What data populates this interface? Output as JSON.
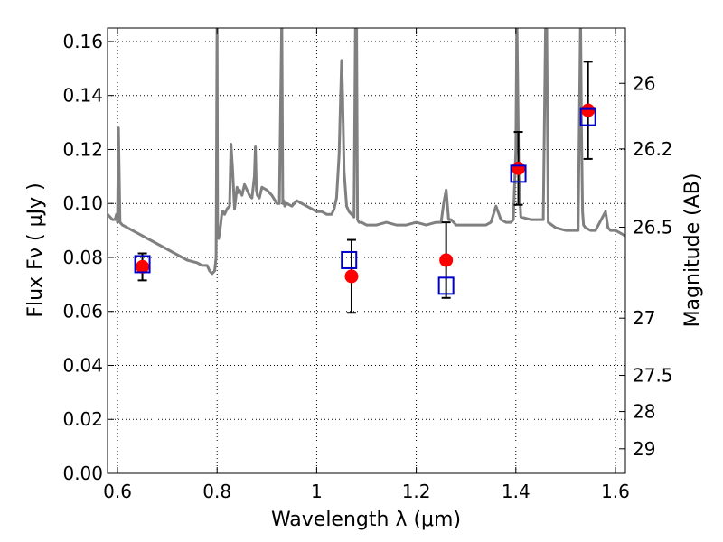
{
  "chart_data": {
    "type": "scatter",
    "xlabel": "Wavelength  λ (μm)",
    "ylabel": "Flux  Fν  ( μJy )",
    "ylabel_right": "Magnitude (AB)",
    "xlim": [
      0.58,
      1.62
    ],
    "ylim": [
      0.0,
      0.165
    ],
    "grid": true,
    "x_ticks": [
      0.6,
      0.8,
      1.0,
      1.2,
      1.4,
      1.6
    ],
    "x_tick_labels": [
      "0.6",
      "0.8",
      "1",
      "1.2",
      "1.4",
      "1.6"
    ],
    "y_ticks": [
      0.0,
      0.02,
      0.04,
      0.06,
      0.08,
      0.1,
      0.12,
      0.14,
      0.16
    ],
    "y_tick_labels": [
      "0.00",
      "0.02",
      "0.04",
      "0.06",
      "0.08",
      "0.10",
      "0.12",
      "0.14",
      "0.16"
    ],
    "right_ticks": [
      {
        "label": "26",
        "flux": 0.1445
      },
      {
        "label": "26.2",
        "flux": 0.1202
      },
      {
        "label": "26.5",
        "flux": 0.0912
      },
      {
        "label": "27",
        "flux": 0.0575
      },
      {
        "label": "27.5",
        "flux": 0.0363
      },
      {
        "label": "28",
        "flux": 0.0229
      },
      {
        "label": "29",
        "flux": 0.0091
      }
    ],
    "colors": {
      "model": "#808080",
      "observed": "#ff0000",
      "model_photometry": "#0000cc",
      "error_bar": "#000000"
    },
    "model_spectrum": {
      "x": [
        0.58,
        0.59,
        0.595,
        0.598,
        0.6,
        0.602,
        0.605,
        0.61,
        0.62,
        0.63,
        0.64,
        0.65,
        0.66,
        0.67,
        0.68,
        0.69,
        0.7,
        0.72,
        0.74,
        0.76,
        0.77,
        0.78,
        0.785,
        0.79,
        0.795,
        0.798,
        0.8,
        0.801,
        0.803,
        0.805,
        0.807,
        0.81,
        0.812,
        0.815,
        0.82,
        0.825,
        0.828,
        0.831,
        0.835,
        0.84,
        0.842,
        0.845,
        0.85,
        0.855,
        0.86,
        0.865,
        0.87,
        0.875,
        0.877,
        0.879,
        0.881,
        0.885,
        0.89,
        0.9,
        0.91,
        0.92,
        0.925,
        0.93,
        0.932,
        0.934,
        0.936,
        0.94,
        0.95,
        0.96,
        0.97,
        0.98,
        0.99,
        1.0,
        1.01,
        1.02,
        1.03,
        1.035,
        1.04,
        1.045,
        1.048,
        1.05,
        1.052,
        1.055,
        1.06,
        1.065,
        1.07,
        1.075,
        1.078,
        1.08,
        1.082,
        1.085,
        1.09,
        1.1,
        1.12,
        1.14,
        1.16,
        1.18,
        1.2,
        1.22,
        1.24,
        1.25,
        1.255,
        1.26,
        1.265,
        1.27,
        1.28,
        1.3,
        1.32,
        1.34,
        1.35,
        1.355,
        1.36,
        1.37,
        1.38,
        1.39,
        1.395,
        1.4,
        1.402,
        1.404,
        1.406,
        1.41,
        1.43,
        1.45,
        1.455,
        1.46,
        1.462,
        1.465,
        1.48,
        1.5,
        1.52,
        1.525,
        1.53,
        1.532,
        1.534,
        1.536,
        1.54,
        1.55,
        1.56,
        1.58,
        1.585,
        1.59,
        1.6,
        1.61,
        1.62
      ],
      "y": [
        0.096,
        0.094,
        0.094,
        0.096,
        0.093,
        0.128,
        0.093,
        0.092,
        0.091,
        0.09,
        0.089,
        0.088,
        0.087,
        0.086,
        0.085,
        0.084,
        0.083,
        0.081,
        0.079,
        0.078,
        0.077,
        0.077,
        0.075,
        0.074,
        0.075,
        0.08,
        0.17,
        0.088,
        0.087,
        0.089,
        0.092,
        0.097,
        0.097,
        0.096,
        0.098,
        0.099,
        0.122,
        0.113,
        0.098,
        0.106,
        0.104,
        0.105,
        0.103,
        0.107,
        0.105,
        0.103,
        0.102,
        0.11,
        0.121,
        0.105,
        0.103,
        0.102,
        0.106,
        0.105,
        0.103,
        0.1,
        0.1,
        0.17,
        0.1,
        0.101,
        0.099,
        0.1,
        0.099,
        0.101,
        0.1,
        0.099,
        0.098,
        0.097,
        0.097,
        0.096,
        0.096,
        0.098,
        0.102,
        0.118,
        0.14,
        0.153,
        0.14,
        0.112,
        0.099,
        0.097,
        0.096,
        0.095,
        0.17,
        0.17,
        0.094,
        0.093,
        0.093,
        0.092,
        0.092,
        0.093,
        0.092,
        0.092,
        0.093,
        0.092,
        0.093,
        0.093,
        0.1,
        0.105,
        0.094,
        0.094,
        0.092,
        0.092,
        0.092,
        0.092,
        0.093,
        0.096,
        0.099,
        0.094,
        0.093,
        0.093,
        0.094,
        0.12,
        0.17,
        0.14,
        0.11,
        0.095,
        0.094,
        0.094,
        0.094,
        0.17,
        0.17,
        0.093,
        0.091,
        0.09,
        0.09,
        0.09,
        0.17,
        0.125,
        0.097,
        0.092,
        0.091,
        0.09,
        0.09,
        0.097,
        0.091,
        0.09,
        0.09,
        0.089,
        0.088
      ]
    },
    "observed": {
      "x": [
        0.65,
        1.07,
        1.26,
        1.405,
        1.545
      ],
      "y": [
        0.0765,
        0.073,
        0.079,
        0.113,
        0.1345
      ],
      "err": [
        0.005,
        0.0135,
        0.014,
        0.0135,
        0.018
      ]
    },
    "model_photometry": {
      "x": [
        0.65,
        1.065,
        1.26,
        1.405,
        1.545
      ],
      "y": [
        0.0775,
        0.079,
        0.0695,
        0.111,
        0.132
      ]
    }
  }
}
